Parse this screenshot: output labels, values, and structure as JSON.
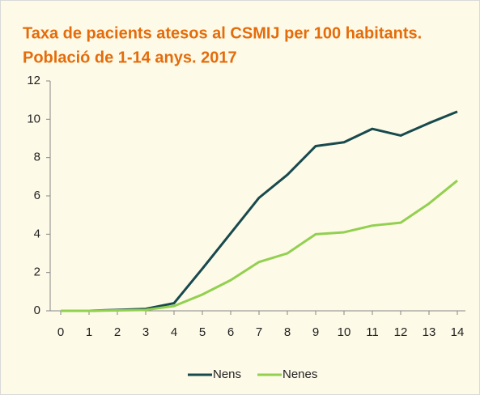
{
  "chart_data": {
    "type": "line",
    "title": [
      "Taxa de pacients atesos al CSMIJ per 100 habitants.",
      "Població de 1-14 anys. 2017"
    ],
    "x": [
      0,
      1,
      2,
      3,
      4,
      5,
      6,
      7,
      8,
      9,
      10,
      11,
      12,
      13,
      14
    ],
    "xlim": [
      0,
      14
    ],
    "xticks": [
      0,
      1,
      2,
      3,
      4,
      5,
      6,
      7,
      8,
      9,
      10,
      11,
      12,
      13,
      14
    ],
    "ylim": [
      0,
      12
    ],
    "yticks": [
      0,
      2,
      4,
      6,
      8,
      10,
      12
    ],
    "grid": false,
    "legend": "bottom",
    "series": [
      {
        "name": "Nens",
        "color": "#17494d",
        "values": [
          0,
          0,
          0.05,
          0.1,
          0.4,
          2.2,
          4.05,
          5.9,
          7.1,
          8.6,
          8.8,
          9.5,
          9.15,
          9.8,
          10.4
        ]
      },
      {
        "name": "Nenes",
        "color": "#92d050",
        "values": [
          0,
          0,
          0.02,
          0.05,
          0.25,
          0.85,
          1.6,
          2.55,
          3.0,
          4.0,
          4.1,
          4.45,
          4.6,
          5.6,
          6.8
        ]
      }
    ]
  }
}
